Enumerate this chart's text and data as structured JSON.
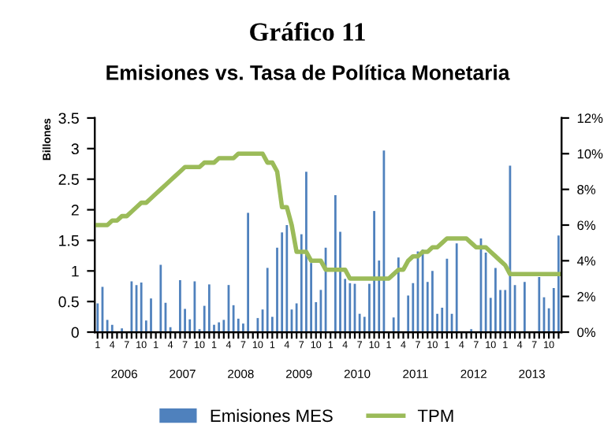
{
  "chart_data": {
    "type": "bar",
    "title": "Gráfico 11",
    "subtitle": "Emisiones vs. Tasa de Política Monetaria",
    "ylabel": "Billones",
    "categories": [
      "1",
      null,
      null,
      "4",
      null,
      null,
      "7",
      null,
      null,
      "10",
      null,
      null,
      "1",
      null,
      null,
      "4",
      null,
      null,
      "7",
      null,
      null,
      "10",
      null,
      null,
      "1",
      null,
      null,
      "4",
      null,
      null,
      "7",
      null,
      null,
      "10",
      null,
      null,
      "1",
      null,
      null,
      "4",
      null,
      null,
      "7",
      null,
      null,
      "10",
      null,
      null,
      "1",
      null,
      null,
      "4",
      null,
      null,
      "7",
      null,
      null,
      "10",
      null,
      null,
      "1",
      null,
      null,
      "4",
      null,
      null,
      "7",
      null,
      null,
      "10",
      null,
      null,
      "1",
      null,
      null,
      "4",
      null,
      null,
      "7",
      null,
      null,
      "10",
      null,
      null,
      "1",
      null,
      null,
      "4",
      null,
      null,
      "7",
      null,
      null,
      "10",
      null,
      null
    ],
    "annotations": [
      "2006",
      "2007",
      "2008",
      "2009",
      "2010",
      "2011",
      "2012",
      "2013"
    ],
    "series": [
      {
        "name": "Emisiones MES",
        "color": "#4f81bd",
        "values": [
          0.47,
          0.74,
          0.2,
          0.12,
          null,
          0.06,
          0,
          0.83,
          0.77,
          0.81,
          0.19,
          0.55,
          0,
          1.1,
          0.48,
          0.08,
          0,
          0.85,
          0.38,
          0.21,
          0.83,
          0.05,
          0.43,
          0.78,
          0.12,
          0.16,
          0.2,
          0.77,
          0.44,
          0.22,
          0.14,
          1.95,
          0,
          0.23,
          0.37,
          1.05,
          0.25,
          1.38,
          1.63,
          1.75,
          0.37,
          0.47,
          1.6,
          2.62,
          1.13,
          0.49,
          0.69,
          1.38,
          0,
          2.24,
          1.64,
          0.87,
          0.8,
          0.79,
          0.3,
          0.25,
          0.79,
          1.98,
          1.17,
          2.97,
          0,
          0.24,
          1.22,
          0,
          0.6,
          0.8,
          1.32,
          1.35,
          0.82,
          1.0,
          0.3,
          0.4,
          1.2,
          0.3,
          1.45,
          0,
          0,
          0.05,
          0,
          1.53,
          1.3,
          0.56,
          1.05,
          0.69,
          0.69,
          2.72,
          0.77,
          0,
          0.82,
          0,
          0,
          0.9,
          0.57,
          0.39,
          0.72,
          1.58
        ]
      },
      {
        "name": "TPM",
        "type": "line",
        "axis": "y2",
        "color": "#9bbb59",
        "values": [
          6.0,
          6.0,
          6.0,
          6.25,
          6.25,
          6.5,
          6.5,
          6.75,
          7.0,
          7.25,
          7.25,
          7.5,
          7.75,
          8.0,
          8.25,
          8.5,
          8.75,
          9.0,
          9.25,
          9.25,
          9.25,
          9.25,
          9.5,
          9.5,
          9.5,
          9.75,
          9.75,
          9.75,
          9.75,
          10.0,
          10.0,
          10.0,
          10.0,
          10.0,
          10.0,
          9.5,
          9.5,
          9.0,
          7.0,
          7.0,
          6.0,
          4.5,
          4.5,
          4.5,
          4.0,
          4.0,
          4.0,
          3.5,
          3.5,
          3.5,
          3.5,
          3.5,
          3.0,
          3.0,
          3.0,
          3.0,
          3.0,
          3.0,
          3.0,
          3.0,
          3.0,
          3.25,
          3.5,
          3.5,
          4.0,
          4.25,
          4.25,
          4.5,
          4.5,
          4.75,
          4.75,
          5.0,
          5.25,
          5.25,
          5.25,
          5.25,
          5.25,
          5.0,
          4.75,
          4.75,
          4.75,
          4.5,
          4.25,
          4.0,
          3.75,
          3.25,
          3.25,
          3.25,
          3.25,
          3.25,
          3.25,
          3.25,
          3.25,
          3.25,
          3.25,
          3.25
        ]
      }
    ],
    "ylim": [
      0,
      3.5
    ],
    "yticks": [
      0,
      0.5,
      1,
      1.5,
      2,
      2.5,
      3,
      3.5
    ],
    "y2lim": [
      0,
      12
    ],
    "y2ticks": [
      {
        "value": 0,
        "label": "0%"
      },
      {
        "value": 2,
        "label": "2%"
      },
      {
        "value": 4,
        "label": "4%"
      },
      {
        "value": 6,
        "label": "6%"
      },
      {
        "value": 8,
        "label": "8%"
      },
      {
        "value": 10,
        "label": "10%"
      },
      {
        "value": 12,
        "label": "12%"
      }
    ],
    "grid": false,
    "legend": "bottom"
  }
}
